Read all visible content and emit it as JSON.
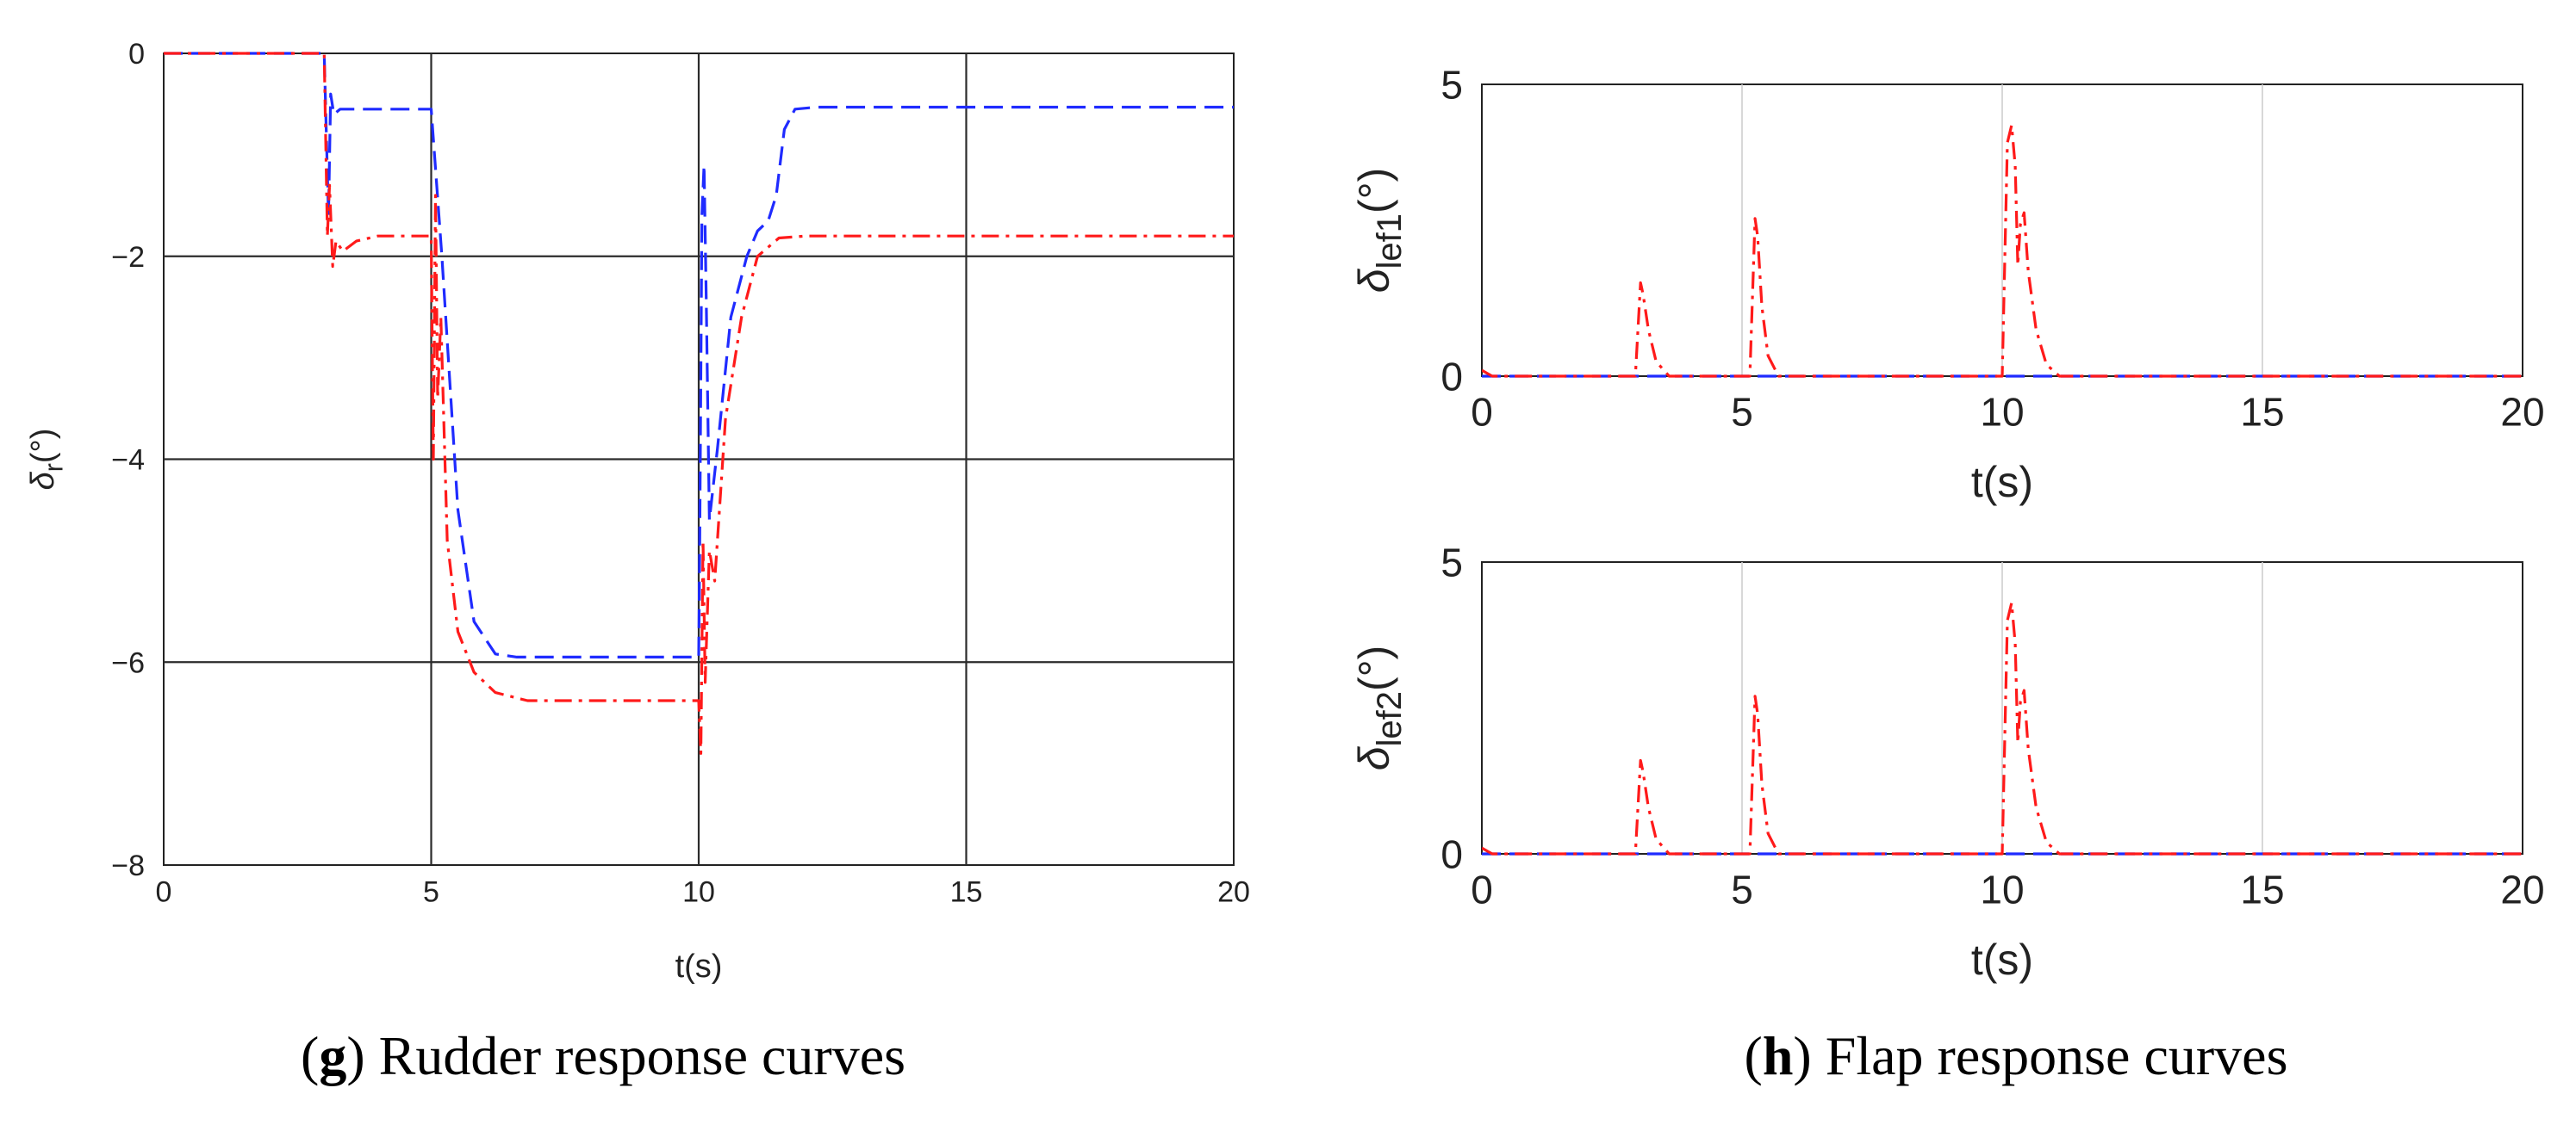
{
  "colors": {
    "blue_series": "#1f2bff",
    "red_series": "#ff1a1a",
    "grid": "#1a1a1a",
    "axis": "#333333"
  },
  "captions": {
    "g": {
      "letter": "g",
      "text": ") Rudder response curves",
      "open": "("
    },
    "h": {
      "letter": "h",
      "text": ") Flap response curves",
      "open": "("
    }
  },
  "chart_data": [
    {
      "id": "rudder",
      "type": "line",
      "title": "",
      "xlabel": "t(s)",
      "ylabel_main": "δ",
      "ylabel_sub": "r",
      "ylabel_tail": "(°)",
      "xlim": [
        0,
        20
      ],
      "ylim": [
        -8,
        0
      ],
      "xticks": [
        0,
        5,
        10,
        15,
        20
      ],
      "yticks": [
        0,
        -2,
        -4,
        -6,
        -8
      ],
      "xtick_labels": [
        "0",
        "5",
        "10",
        "15",
        "20"
      ],
      "ytick_labels": [
        "0",
        "−2",
        "−4",
        "−6",
        "−8"
      ],
      "grid": true,
      "series": [
        {
          "name": "blue dashed",
          "style": "dashed",
          "color": "#1f2bff",
          "x": [
            0,
            3.0,
            3.08,
            3.12,
            3.18,
            3.3,
            5.0,
            5.2,
            5.5,
            5.8,
            6.2,
            6.6,
            10.0,
            10.02,
            10.06,
            10.1,
            10.14,
            10.2,
            10.35,
            10.6,
            10.9,
            11.1,
            11.3,
            11.45,
            11.6,
            11.8,
            12.2,
            20
          ],
          "y": [
            0,
            0,
            -1.6,
            -0.4,
            -0.6,
            -0.55,
            -0.55,
            -2.0,
            -4.5,
            -5.6,
            -5.92,
            -5.95,
            -5.95,
            -4.8,
            -1.6,
            -1.1,
            -2.4,
            -4.6,
            -3.9,
            -2.6,
            -2.0,
            -1.75,
            -1.65,
            -1.4,
            -0.75,
            -0.55,
            -0.53,
            -0.53
          ]
        },
        {
          "name": "red dash-dot",
          "style": "dashdot",
          "color": "#ff1a1a",
          "x": [
            0,
            3.0,
            3.06,
            3.1,
            3.16,
            3.22,
            3.35,
            3.6,
            4.0,
            5.0,
            5.04,
            5.08,
            5.12,
            5.18,
            5.3,
            5.5,
            5.8,
            6.2,
            6.8,
            10.0,
            10.04,
            10.08,
            10.12,
            10.2,
            10.3,
            10.5,
            10.8,
            11.1,
            11.5,
            12.0,
            20
          ],
          "y": [
            0,
            0,
            -1.8,
            -1.3,
            -2.1,
            -1.85,
            -1.95,
            -1.85,
            -1.8,
            -1.8,
            -4.0,
            -1.4,
            -3.4,
            -2.6,
            -4.8,
            -5.7,
            -6.1,
            -6.3,
            -6.38,
            -6.38,
            -6.9,
            -4.8,
            -6.2,
            -4.9,
            -5.2,
            -3.6,
            -2.6,
            -2.0,
            -1.82,
            -1.8,
            -1.8
          ]
        }
      ]
    },
    {
      "id": "lef1",
      "type": "line",
      "title": "",
      "xlabel": "t(s)",
      "ylabel_main": "δ",
      "ylabel_sub": "lef1",
      "ylabel_tail": "(°)",
      "xlim": [
        0,
        20
      ],
      "ylim": [
        0,
        5
      ],
      "xticks": [
        0,
        5,
        10,
        15,
        20
      ],
      "yticks": [
        0,
        5
      ],
      "xtick_labels": [
        "0",
        "5",
        "10",
        "15",
        "20"
      ],
      "ytick_labels": [
        "0",
        "5"
      ],
      "grid": true,
      "series": [
        {
          "name": "blue dashed",
          "style": "dashed",
          "color": "#1f2bff",
          "x": [
            0,
            20
          ],
          "y": [
            0,
            0
          ]
        },
        {
          "name": "red dash-dot",
          "style": "dashdot",
          "color": "#ff1a1a",
          "x": [
            0,
            0.1,
            0.2,
            2.95,
            3.05,
            3.1,
            3.2,
            3.35,
            3.6,
            5.15,
            5.25,
            5.3,
            5.38,
            5.5,
            5.7,
            10.0,
            10.1,
            10.18,
            10.25,
            10.3,
            10.35,
            10.42,
            10.5,
            10.65,
            10.85,
            11.1,
            20
          ],
          "y": [
            0.1,
            0.05,
            0,
            0,
            1.6,
            1.4,
            0.8,
            0.25,
            0,
            0,
            2.7,
            2.4,
            1.2,
            0.35,
            0,
            0,
            4.0,
            4.3,
            3.6,
            1.9,
            2.6,
            2.8,
            1.8,
            0.8,
            0.2,
            0,
            0
          ]
        }
      ]
    },
    {
      "id": "lef2",
      "type": "line",
      "title": "",
      "xlabel": "t(s)",
      "ylabel_main": "δ",
      "ylabel_sub": "lef2",
      "ylabel_tail": "(°)",
      "xlim": [
        0,
        20
      ],
      "ylim": [
        0,
        5
      ],
      "xticks": [
        0,
        5,
        10,
        15,
        20
      ],
      "yticks": [
        0,
        5
      ],
      "xtick_labels": [
        "0",
        "5",
        "10",
        "15",
        "20"
      ],
      "ytick_labels": [
        "0",
        "5"
      ],
      "grid": true,
      "series": [
        {
          "name": "blue dashed",
          "style": "dashed",
          "color": "#1f2bff",
          "x": [
            0,
            20
          ],
          "y": [
            0,
            0
          ]
        },
        {
          "name": "red dash-dot",
          "style": "dashdot",
          "color": "#ff1a1a",
          "x": [
            0,
            0.1,
            0.2,
            2.95,
            3.05,
            3.1,
            3.2,
            3.35,
            3.6,
            5.15,
            5.25,
            5.3,
            5.38,
            5.5,
            5.7,
            10.0,
            10.1,
            10.18,
            10.25,
            10.3,
            10.35,
            10.42,
            10.5,
            10.65,
            10.85,
            11.1,
            20
          ],
          "y": [
            0.1,
            0.05,
            0,
            0,
            1.6,
            1.4,
            0.8,
            0.25,
            0,
            0,
            2.7,
            2.4,
            1.2,
            0.35,
            0,
            0,
            4.0,
            4.3,
            3.6,
            1.9,
            2.6,
            2.8,
            1.8,
            0.8,
            0.2,
            0,
            0
          ]
        }
      ]
    }
  ]
}
